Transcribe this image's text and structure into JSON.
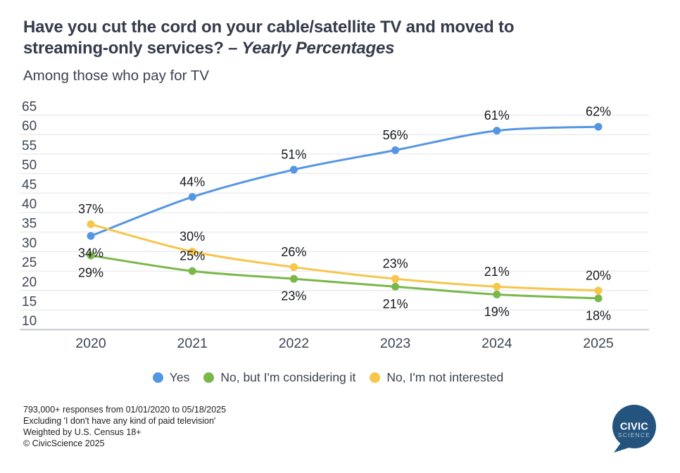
{
  "header": {
    "title_line1": "Have you cut the cord on your cable/satellite TV and moved to",
    "title_line2": "streaming-only services?",
    "title_italic": "– Yearly Percentages",
    "subtitle": "Among those who pay for TV"
  },
  "chart_data": {
    "type": "line",
    "title": "Have you cut the cord on your cable/satellite TV and moved to streaming-only services? – Yearly Percentages",
    "subtitle": "Among those who pay for TV",
    "categories": [
      "2020",
      "2021",
      "2022",
      "2023",
      "2024",
      "2025"
    ],
    "yticks": [
      65,
      60,
      55,
      50,
      45,
      40,
      35,
      30,
      25,
      20,
      15,
      10
    ],
    "ylim": [
      10,
      65
    ],
    "grid": true,
    "legend_position": "bottom",
    "value_suffix": "%",
    "series": [
      {
        "name": "Yes",
        "color": "#5596e3",
        "values": [
          34,
          44,
          51,
          56,
          61,
          62
        ],
        "label_positions": [
          "below",
          "above",
          "above",
          "above",
          "above",
          "above"
        ]
      },
      {
        "name": "No, but I'm considering it",
        "color": "#7ab74a",
        "values": [
          29,
          25,
          23,
          21,
          19,
          18
        ],
        "label_positions": [
          "below",
          "above",
          "below",
          "below",
          "below",
          "below"
        ]
      },
      {
        "name": "No, I'm not interested",
        "color": "#f7c64b",
        "values": [
          37,
          30,
          26,
          23,
          21,
          20
        ],
        "label_positions": [
          "above",
          "above",
          "above",
          "above",
          "above",
          "above"
        ]
      }
    ]
  },
  "footer": {
    "lines": [
      "793,000+ responses from 01/01/2020 to 05/18/2025",
      "Excluding 'I don't have any kind of paid television'",
      "Weighted by U.S. Census 18+",
      "© CivicScience 2025"
    ]
  },
  "logo": {
    "line1": "CIVIC",
    "line2": "SCIENCE",
    "color": "#24547e"
  }
}
